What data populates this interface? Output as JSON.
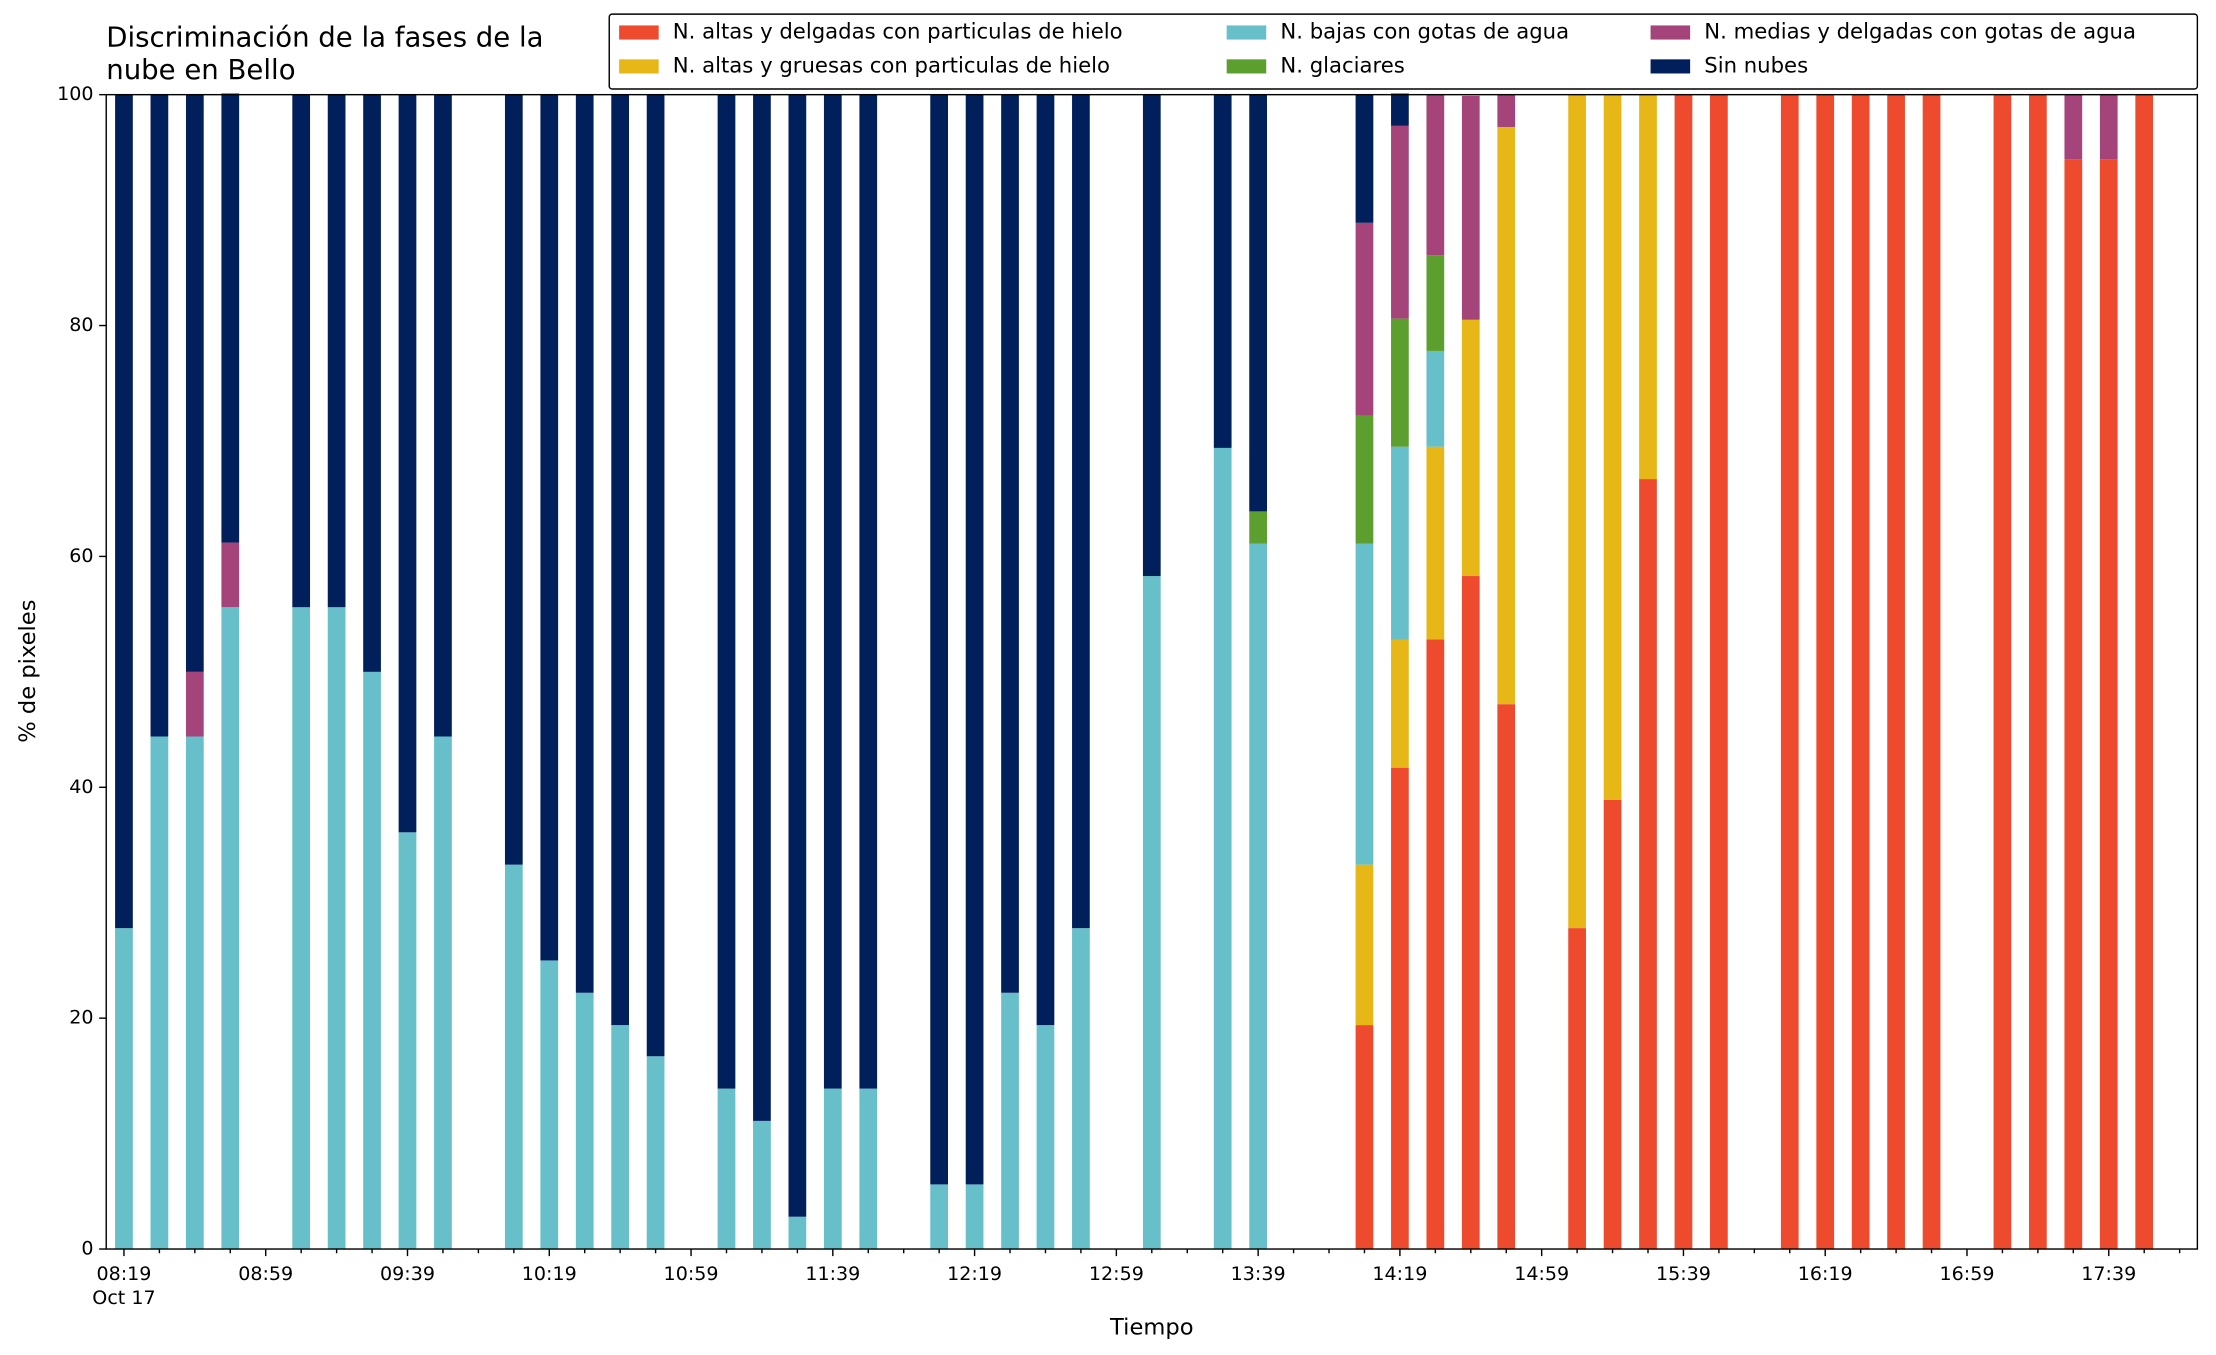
{
  "chart_data": {
    "type": "stacked_bar",
    "title": "Discriminación de la fases de la\nnube en Bello",
    "xlabel": "Tiempo",
    "ylabel": "% de pixeles",
    "x": [
      "08:19",
      "08:29",
      "08:39",
      "08:49",
      "09:09",
      "09:19",
      "09:29",
      "09:39",
      "09:49",
      "10:09",
      "10:19",
      "10:29",
      "10:39",
      "10:49",
      "11:09",
      "11:19",
      "11:29",
      "11:39",
      "11:49",
      "12:09",
      "12:19",
      "12:29",
      "12:39",
      "12:49",
      "13:09",
      "13:29",
      "13:39",
      "14:09",
      "14:19",
      "14:29",
      "14:39",
      "14:49",
      "15:09",
      "15:19",
      "15:29",
      "15:39",
      "15:49",
      "16:09",
      "16:19",
      "16:29",
      "16:39",
      "16:49",
      "17:09",
      "17:19",
      "17:29",
      "17:39",
      "17:49"
    ],
    "xlim": [
      "08:14",
      "18:04"
    ],
    "xticks": [
      "08:19",
      "08:59",
      "09:39",
      "10:19",
      "10:59",
      "11:39",
      "12:19",
      "12:59",
      "13:39",
      "14:19",
      "14:59",
      "15:39",
      "16:19",
      "16:59",
      "17:39"
    ],
    "xminorticks": [
      "08:29",
      "08:39",
      "08:49",
      "09:09",
      "09:19",
      "09:29",
      "09:49",
      "09:59",
      "10:09",
      "10:29",
      "10:39",
      "10:49",
      "11:09",
      "11:19",
      "11:29",
      "11:49",
      "11:59",
      "12:09",
      "12:29",
      "12:39",
      "12:49",
      "13:09",
      "13:19",
      "13:29",
      "13:49",
      "13:59",
      "14:09",
      "14:29",
      "14:39",
      "14:49",
      "15:09",
      "15:19",
      "15:29",
      "15:49",
      "15:59",
      "16:09",
      "16:29",
      "16:39",
      "16:49",
      "17:09",
      "17:19",
      "17:29",
      "17:49",
      "17:59"
    ],
    "xtick_sublabel": "Oct 17",
    "ylim": [
      0,
      100
    ],
    "yticks": [
      0,
      20,
      40,
      60,
      80,
      100
    ],
    "legend": "upper right",
    "series": [
      {
        "name": "N. altas y delgadas con particulas de hielo",
        "color": "#ee4a2d",
        "values": [
          0,
          0,
          0,
          0,
          0,
          0,
          0,
          0,
          0,
          0,
          0,
          0,
          0,
          0,
          0,
          0,
          0,
          0,
          0,
          0,
          0,
          0,
          0,
          0,
          0,
          0,
          0,
          19.4,
          41.7,
          52.8,
          58.3,
          47.2,
          27.8,
          38.9,
          66.7,
          100,
          100,
          100,
          100,
          100,
          100,
          100,
          100,
          100,
          94.4,
          94.4,
          100
        ]
      },
      {
        "name": "N. altas y gruesas con particulas de hielo",
        "color": "#e6b717",
        "values": [
          0,
          0,
          0,
          0,
          0,
          0,
          0,
          0,
          0,
          0,
          0,
          0,
          0,
          0,
          0,
          0,
          0,
          0,
          0,
          0,
          0,
          0,
          0,
          0,
          0,
          0,
          0,
          13.9,
          11.1,
          16.7,
          22.2,
          50,
          72.2,
          61.1,
          33.3,
          0,
          0,
          0,
          0,
          0,
          0,
          0,
          0,
          0,
          0,
          0,
          0
        ]
      },
      {
        "name": "N. bajas con gotas de agua",
        "color": "#66bfc9",
        "values": [
          27.8,
          44.4,
          44.4,
          55.6,
          55.6,
          55.6,
          50,
          36.1,
          44.4,
          33.3,
          25,
          22.2,
          19.4,
          16.7,
          13.9,
          11.1,
          2.8,
          13.9,
          13.9,
          5.6,
          5.6,
          22.2,
          19.4,
          27.8,
          58.3,
          69.4,
          61.1,
          27.8,
          16.7,
          8.3,
          0,
          0,
          0,
          0,
          0,
          0,
          0,
          0,
          0,
          0,
          0,
          0,
          0,
          0,
          0,
          0,
          0
        ]
      },
      {
        "name": "N. glaciares",
        "color": "#5d9f2e",
        "values": [
          0,
          0,
          0,
          0,
          0,
          0,
          0,
          0,
          0,
          0,
          0,
          0,
          0,
          0,
          0,
          0,
          0,
          0,
          0,
          0,
          0,
          0,
          0,
          0,
          0,
          0,
          2.8,
          11.1,
          11.1,
          8.3,
          0,
          0,
          0,
          0,
          0,
          0,
          0,
          0,
          0,
          0,
          0,
          0,
          0,
          0,
          0,
          0,
          0
        ]
      },
      {
        "name": "N. medias y delgadas con gotas de agua",
        "color": "#a4447a",
        "values": [
          0,
          0,
          5.6,
          5.6,
          0,
          0,
          0,
          0,
          0,
          0,
          0,
          0,
          0,
          0,
          0,
          0,
          0,
          0,
          0,
          0,
          0,
          0,
          0,
          0,
          0,
          0,
          0,
          16.7,
          16.7,
          13.9,
          19.4,
          2.8,
          0,
          0,
          0,
          0,
          0,
          0,
          0,
          0,
          0,
          0,
          0,
          0,
          5.6,
          5.6,
          0
        ]
      },
      {
        "name": "Sin nubes",
        "color": "#011f5b",
        "values": [
          72.2,
          55.6,
          50,
          38.9,
          44.4,
          44.4,
          50,
          63.9,
          55.6,
          66.7,
          75,
          77.8,
          80.6,
          83.3,
          86.1,
          88.9,
          97.2,
          86.1,
          86.1,
          94.4,
          94.4,
          77.8,
          80.6,
          72.2,
          41.7,
          30.6,
          36.1,
          11.1,
          2.8,
          0,
          0,
          0,
          0,
          0,
          0,
          0,
          0,
          0,
          0,
          0,
          0,
          0,
          0,
          0,
          0,
          0,
          0
        ]
      }
    ]
  }
}
